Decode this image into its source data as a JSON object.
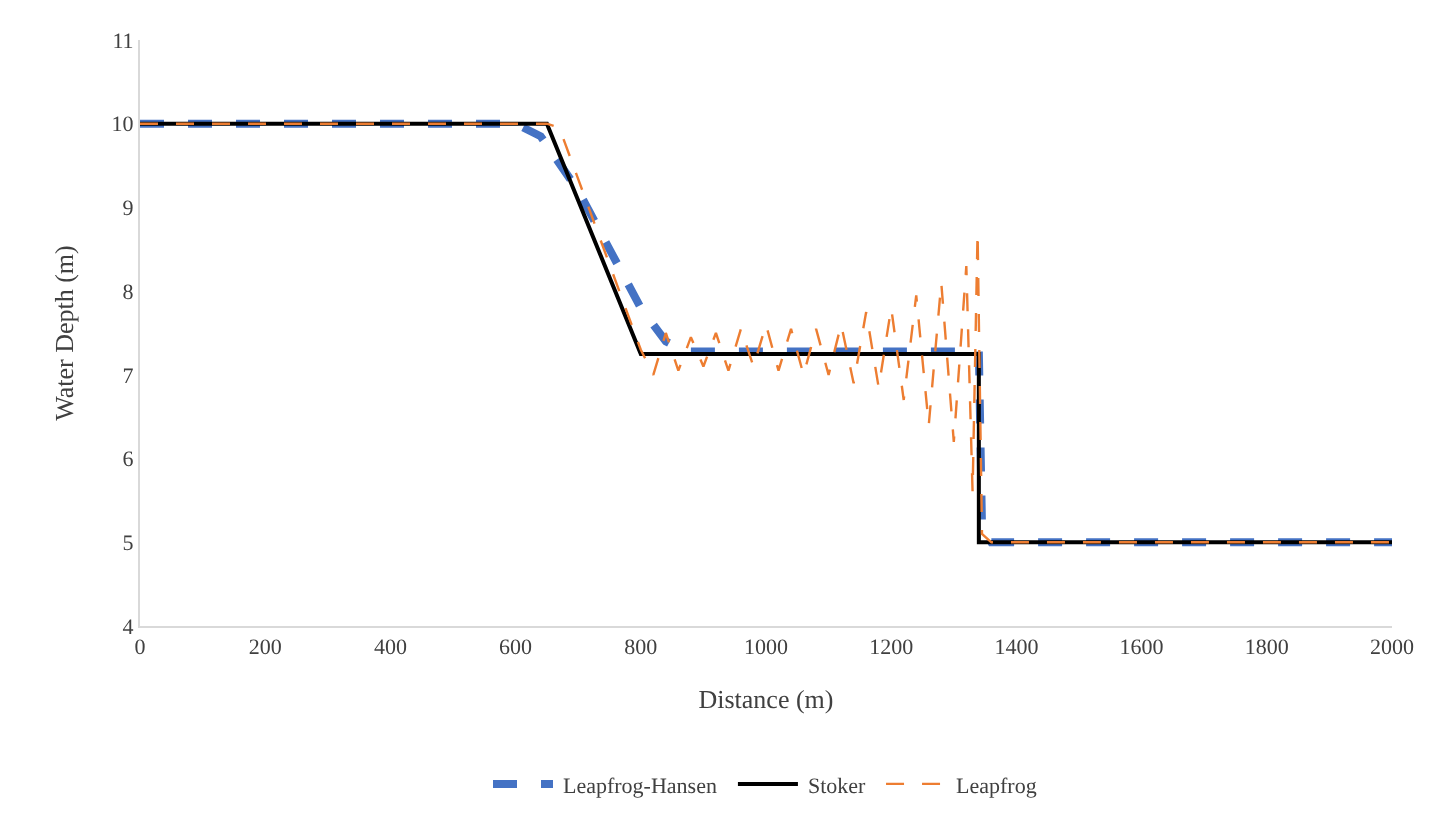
{
  "chart_data": {
    "type": "line",
    "xlabel": "Distance (m)",
    "ylabel": "Water Depth (m)",
    "xlim": [
      0,
      2000
    ],
    "xticks": [
      0,
      200,
      400,
      600,
      800,
      1000,
      1200,
      1400,
      1600,
      1800,
      2000
    ],
    "ylim": [
      4,
      11
    ],
    "yticks": [
      4,
      5,
      6,
      7,
      8,
      9,
      10,
      11
    ],
    "grid": false,
    "legend": "bottom",
    "marker": "none",
    "series": [
      {
        "name": "Leapfrog-Hansen",
        "color": "#4472c4",
        "line_style": "dashed",
        "x": [
          0,
          600,
          640,
          700,
          800,
          840,
          870,
          1340,
          1345,
          1360,
          2000
        ],
        "values": [
          10,
          10,
          9.85,
          9.2,
          7.8,
          7.4,
          7.28,
          7.28,
          5.2,
          5.0,
          5.0
        ]
      },
      {
        "name": "Stoker",
        "color": "#000000",
        "line_style": "solid",
        "x": [
          0,
          650,
          800,
          1340,
          1340,
          2000
        ],
        "values": [
          10,
          10,
          7.25,
          7.25,
          5.0,
          5.0
        ]
      },
      {
        "name": "Leapfrog",
        "color": "#ed7d31",
        "line_style": "dashed",
        "x": [
          0,
          650,
          670,
          800,
          820,
          840,
          860,
          880,
          900,
          920,
          940,
          960,
          980,
          1000,
          1020,
          1040,
          1060,
          1080,
          1100,
          1120,
          1140,
          1160,
          1180,
          1200,
          1220,
          1240,
          1260,
          1280,
          1300,
          1320,
          1330,
          1338,
          1345,
          1360,
          2000
        ],
        "values": [
          10,
          10,
          9.95,
          7.3,
          7.0,
          7.5,
          7.05,
          7.45,
          7.1,
          7.5,
          7.05,
          7.55,
          7.1,
          7.6,
          7.05,
          7.55,
          7.0,
          7.55,
          7.0,
          7.6,
          6.9,
          7.75,
          6.85,
          7.8,
          6.7,
          7.95,
          6.4,
          8.1,
          6.2,
          8.3,
          5.6,
          8.7,
          5.1,
          5.0,
          5.0
        ]
      }
    ]
  }
}
